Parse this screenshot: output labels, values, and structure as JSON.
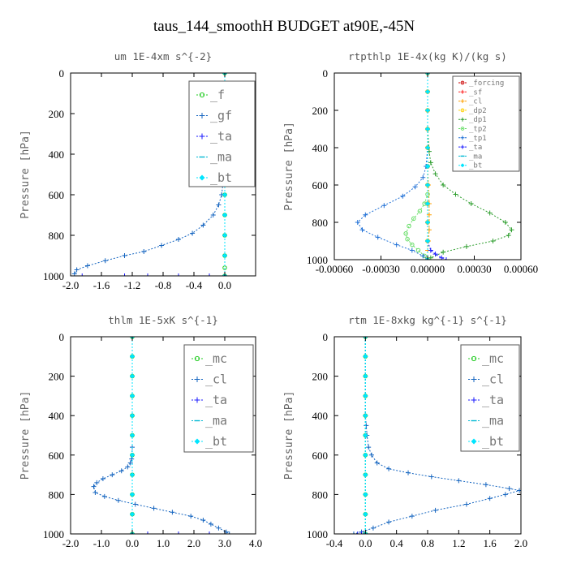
{
  "figure": {
    "title": "taus_144_smoothH  BUDGET at90E,-45N"
  },
  "chart_data": [
    {
      "type": "line",
      "title": "um  1E-4xm s^{-2}",
      "ylabel": "Pressure [hPa]",
      "xlim": [
        -2.0,
        0.4
      ],
      "ylim": [
        1000,
        0
      ],
      "xticks": [
        -2.0,
        -1.6,
        -1.2,
        -0.8,
        -0.4,
        0.0
      ],
      "xtick_labels": [
        "-2.0",
        "-1.6",
        "-1.2",
        "-0.8",
        "-0.4",
        "0.0"
      ],
      "yticks": [
        0,
        200,
        400,
        600,
        800,
        1000
      ],
      "ytick_labels": [
        "0",
        "200",
        "400",
        "600",
        "800",
        "1000"
      ],
      "legend_style": "big",
      "legend_placement": "top-right",
      "series": [
        {
          "name": "_f",
          "color": "#22cc22",
          "marker": "circle",
          "x": [
            0.0,
            0.0,
            0.0,
            0.0,
            0.0,
            0.0,
            0.0,
            0.0,
            0.0,
            0.0,
            0.0,
            0.0
          ],
          "y": [
            0,
            100,
            200,
            300,
            400,
            500,
            600,
            700,
            800,
            900,
            960,
            1000
          ]
        },
        {
          "name": "_gf",
          "color": "#1565c0",
          "marker": "plus",
          "x": [
            0.0,
            0.0,
            0.0,
            0.0,
            0.0,
            -0.01,
            -0.04,
            -0.08,
            -0.15,
            -0.28,
            -0.42,
            -0.6,
            -0.82,
            -1.05,
            -1.3,
            -1.55,
            -1.78,
            -1.92,
            -1.95
          ],
          "y": [
            0,
            100,
            200,
            300,
            400,
            500,
            600,
            650,
            700,
            750,
            790,
            820,
            850,
            880,
            900,
            925,
            950,
            970,
            990
          ]
        },
        {
          "name": "_ta",
          "color": "#1a1aff",
          "marker": "plus",
          "x": [
            -1.85,
            -1.6,
            -1.3,
            -1.0,
            -0.6,
            -0.2
          ],
          "y": [
            1000,
            1000,
            1000,
            1000,
            1000,
            1000
          ]
        },
        {
          "name": "_ma",
          "color": "#00b8d4",
          "marker": "dash",
          "x": [
            0.0,
            0.0,
            0.0,
            0.0,
            0.0,
            0.0,
            0.0,
            0.0,
            0.0,
            0.0,
            0.0
          ],
          "y": [
            0,
            100,
            200,
            300,
            400,
            500,
            600,
            700,
            800,
            900,
            1000
          ]
        },
        {
          "name": "_bt",
          "color": "#00e5ff",
          "marker": "diamond",
          "x": [
            0.0,
            0.0,
            0.0,
            0.0,
            0.0,
            0.0,
            0.0,
            0.0,
            0.0,
            0.0,
            0.0
          ],
          "y": [
            0,
            100,
            200,
            300,
            400,
            500,
            600,
            700,
            800,
            900,
            1000
          ]
        }
      ]
    },
    {
      "type": "line",
      "title": "rtpthlp  1E-4x(kg K)/(kg s)",
      "ylabel": "Pressure [hPa]",
      "xlim": [
        -0.0006,
        0.0006
      ],
      "ylim": [
        1000,
        0
      ],
      "xticks": [
        -0.0006,
        -0.0003,
        0.0,
        0.0003,
        0.0006
      ],
      "xtick_labels": [
        "-0.00060",
        "-0.00030",
        "0.00000",
        "0.00030",
        "0.00060"
      ],
      "yticks": [
        0,
        200,
        400,
        600,
        800,
        1000
      ],
      "ytick_labels": [
        "0",
        "200",
        "400",
        "600",
        "800",
        "1000"
      ],
      "legend_style": "small",
      "legend_placement": "top-right",
      "series": [
        {
          "name": "_forcing",
          "color": "#cc0000",
          "marker": "circle",
          "x": [
            0.0,
            0.0,
            0.0,
            0.0,
            0.0,
            0.0,
            0.0,
            0.0,
            0.0,
            0.0,
            0.0
          ],
          "y": [
            0,
            100,
            200,
            300,
            400,
            500,
            600,
            700,
            800,
            900,
            1000
          ]
        },
        {
          "name": "_sf",
          "color": "#ff2020",
          "marker": "plus",
          "x": [
            0.0,
            0.0,
            0.0,
            0.0,
            0.0,
            0.0,
            0.0,
            0.0,
            0.0,
            0.0,
            0.0
          ],
          "y": [
            0,
            100,
            200,
            300,
            400,
            500,
            600,
            700,
            800,
            900,
            1000
          ]
        },
        {
          "name": "_cl",
          "color": "#ffa000",
          "marker": "plus",
          "x": [
            0.0,
            0.0,
            0.0,
            0.0,
            0.0,
            0.0,
            5e-06,
            1e-05,
            1e-05,
            1e-05,
            5e-06,
            0.0,
            0.0
          ],
          "y": [
            0,
            100,
            200,
            300,
            400,
            500,
            600,
            700,
            760,
            840,
            900,
            950,
            1000
          ]
        },
        {
          "name": "_dp2",
          "color": "#ffd000",
          "marker": "circle",
          "x": [
            0.0,
            0.0,
            0.0,
            0.0,
            0.0,
            0.0,
            0.0,
            0.0,
            0.0,
            0.0,
            0.0
          ],
          "y": [
            0,
            100,
            200,
            300,
            400,
            500,
            600,
            700,
            800,
            900,
            1000
          ]
        },
        {
          "name": "_dp1",
          "color": "#2e9e2e",
          "marker": "plus",
          "x": [
            0.0,
            0.0,
            1e-05,
            2e-05,
            5e-05,
            0.0001,
            0.00018,
            0.00028,
            0.0004,
            0.0005,
            0.00054,
            0.00052,
            0.00042,
            0.00025,
            0.0001,
            2e-05
          ],
          "y": [
            0,
            300,
            420,
            480,
            540,
            600,
            650,
            700,
            750,
            800,
            840,
            870,
            900,
            930,
            960,
            990
          ]
        },
        {
          "name": "_tp2",
          "color": "#66dd66",
          "marker": "circle",
          "x": [
            0.0,
            0.0,
            0.0,
            -2e-05,
            -5e-05,
            -9e-05,
            -0.00012,
            -0.00014,
            -0.00013,
            -0.0001,
            -6e-05,
            -2e-05,
            0.0
          ],
          "y": [
            0,
            500,
            650,
            700,
            740,
            780,
            820,
            860,
            890,
            920,
            950,
            980,
            1000
          ]
        },
        {
          "name": "_tp1",
          "color": "#1e6fd6",
          "marker": "plus",
          "x": [
            0.0,
            0.0,
            -1e-05,
            -3e-05,
            -8e-05,
            -0.00016,
            -0.00028,
            -0.0004,
            -0.00045,
            -0.00042,
            -0.00032,
            -0.0002,
            -0.0001,
            -3e-05,
            0.0
          ],
          "y": [
            0,
            400,
            500,
            560,
            610,
            660,
            710,
            760,
            800,
            840,
            880,
            920,
            950,
            980,
            1000
          ]
        },
        {
          "name": "_ta",
          "color": "#1a1aff",
          "marker": "plus",
          "x": [
            0.0,
            0.0,
            0.0,
            2e-05,
            5e-05,
            9e-05,
            0.00012
          ],
          "y": [
            0,
            800,
            900,
            950,
            970,
            990,
            1000
          ]
        },
        {
          "name": "_ma",
          "color": "#00b8d4",
          "marker": "dash",
          "x": [
            0.0,
            0.0,
            0.0,
            0.0,
            0.0,
            0.0,
            0.0,
            0.0,
            0.0,
            0.0,
            0.0
          ],
          "y": [
            0,
            100,
            200,
            300,
            400,
            500,
            600,
            700,
            800,
            900,
            1000
          ]
        },
        {
          "name": "_bt",
          "color": "#00e5ff",
          "marker": "diamond",
          "x": [
            0.0,
            0.0,
            0.0,
            0.0,
            0.0,
            0.0,
            0.0,
            0.0,
            0.0,
            0.0,
            0.0
          ],
          "y": [
            0,
            100,
            200,
            300,
            400,
            500,
            600,
            700,
            800,
            900,
            1000
          ]
        }
      ]
    },
    {
      "type": "line",
      "title": "thlm  1E-5xK s^{-1}",
      "ylabel": "Pressure [hPa]",
      "xlim": [
        -2.0,
        4.0
      ],
      "ylim": [
        1000,
        0
      ],
      "xticks": [
        -2.0,
        -1.0,
        0.0,
        1.0,
        2.0,
        3.0,
        4.0
      ],
      "xtick_labels": [
        "-2.0",
        "-1.0",
        "0.0",
        "1.0",
        "2.0",
        "3.0",
        "4.0"
      ],
      "yticks": [
        0,
        200,
        400,
        600,
        800,
        1000
      ],
      "ytick_labels": [
        "0",
        "200",
        "400",
        "600",
        "800",
        "1000"
      ],
      "legend_style": "big",
      "legend_placement": "top-right",
      "series": [
        {
          "name": "_mc",
          "color": "#22cc22",
          "marker": "circle",
          "x": [
            0.0,
            0.0,
            0.0,
            0.0,
            0.0,
            0.0,
            0.0,
            0.0,
            0.0,
            0.0,
            0.0
          ],
          "y": [
            0,
            100,
            200,
            300,
            400,
            500,
            600,
            700,
            800,
            900,
            1000
          ]
        },
        {
          "name": "_cl",
          "color": "#1565c0",
          "marker": "plus",
          "x": [
            0.0,
            0.0,
            0.0,
            -0.02,
            -0.06,
            -0.15,
            -0.35,
            -0.65,
            -0.95,
            -1.15,
            -1.25,
            -1.2,
            -0.9,
            -0.45,
            0.1,
            0.7,
            1.3,
            1.9,
            2.3,
            2.55,
            2.8,
            3.05,
            3.15
          ],
          "y": [
            0,
            400,
            560,
            620,
            640,
            660,
            680,
            700,
            720,
            740,
            760,
            790,
            810,
            830,
            850,
            870,
            890,
            910,
            930,
            950,
            970,
            990,
            1000
          ]
        },
        {
          "name": "_ta",
          "color": "#1a1aff",
          "marker": "plus",
          "x": [
            0.5,
            1.0,
            1.5,
            2.0,
            2.5,
            3.0
          ],
          "y": [
            1000,
            1000,
            1000,
            1000,
            1000,
            1000
          ]
        },
        {
          "name": "_ma",
          "color": "#00b8d4",
          "marker": "dash",
          "x": [
            0.0,
            0.0,
            0.0,
            0.0,
            0.0,
            0.0,
            0.0,
            0.0,
            0.0,
            0.0,
            0.0
          ],
          "y": [
            0,
            100,
            200,
            300,
            400,
            500,
            600,
            700,
            800,
            900,
            1000
          ]
        },
        {
          "name": "_bt",
          "color": "#00e5ff",
          "marker": "diamond",
          "x": [
            0.0,
            0.0,
            0.0,
            0.0,
            0.0,
            0.0,
            0.0,
            0.0,
            0.0,
            0.0,
            0.0
          ],
          "y": [
            0,
            100,
            200,
            300,
            400,
            500,
            600,
            700,
            800,
            900,
            1000
          ]
        }
      ]
    },
    {
      "type": "line",
      "title": "rtm  1E-8xkg kg^{-1} s^{-1}",
      "ylabel": "Pressure [hPa]",
      "xlim": [
        -0.4,
        2.0
      ],
      "ylim": [
        1000,
        0
      ],
      "xticks": [
        -0.4,
        0.0,
        0.4,
        0.8,
        1.2,
        1.6,
        2.0
      ],
      "xtick_labels": [
        "-0.4",
        "0.0",
        "0.4",
        "0.8",
        "1.2",
        "1.6",
        "2.0"
      ],
      "yticks": [
        0,
        200,
        400,
        600,
        800,
        1000
      ],
      "ytick_labels": [
        "0",
        "200",
        "400",
        "600",
        "800",
        "1000"
      ],
      "legend_style": "big",
      "legend_placement": "top-right",
      "series": [
        {
          "name": "_mc",
          "color": "#22cc22",
          "marker": "circle",
          "x": [
            0.0,
            0.0,
            0.0,
            0.0,
            0.0,
            0.0,
            0.0,
            0.0,
            0.0,
            0.0,
            0.0
          ],
          "y": [
            0,
            100,
            200,
            300,
            400,
            500,
            600,
            700,
            800,
            900,
            1000
          ]
        },
        {
          "name": "_cl",
          "color": "#1565c0",
          "marker": "plus",
          "x": [
            0.0,
            0.0,
            0.01,
            0.02,
            0.04,
            0.08,
            0.15,
            0.3,
            0.55,
            0.85,
            1.2,
            1.55,
            1.85,
            1.98,
            1.8,
            1.6,
            1.3,
            0.9,
            0.6,
            0.3,
            0.1,
            -0.05,
            -0.15
          ],
          "y": [
            0,
            400,
            450,
            500,
            560,
            600,
            640,
            670,
            690,
            710,
            730,
            750,
            770,
            780,
            800,
            820,
            850,
            880,
            910,
            940,
            970,
            990,
            1000
          ]
        },
        {
          "name": "_ta",
          "color": "#1a1aff",
          "marker": "plus",
          "x": [
            -0.1,
            -0.05,
            0.0
          ],
          "y": [
            1000,
            1000,
            1000
          ]
        },
        {
          "name": "_ma",
          "color": "#00b8d4",
          "marker": "dash",
          "x": [
            0.0,
            0.0,
            0.0,
            0.0,
            0.0,
            0.0,
            0.0,
            0.0,
            0.0,
            0.0,
            0.0
          ],
          "y": [
            0,
            100,
            200,
            300,
            400,
            500,
            600,
            700,
            800,
            900,
            1000
          ]
        },
        {
          "name": "_bt",
          "color": "#00e5ff",
          "marker": "diamond",
          "x": [
            0.0,
            0.0,
            0.0,
            0.0,
            0.0,
            0.0,
            0.0,
            0.0,
            0.0,
            0.0,
            0.0
          ],
          "y": [
            0,
            100,
            200,
            300,
            400,
            500,
            600,
            700,
            800,
            900,
            1000
          ]
        }
      ]
    }
  ]
}
